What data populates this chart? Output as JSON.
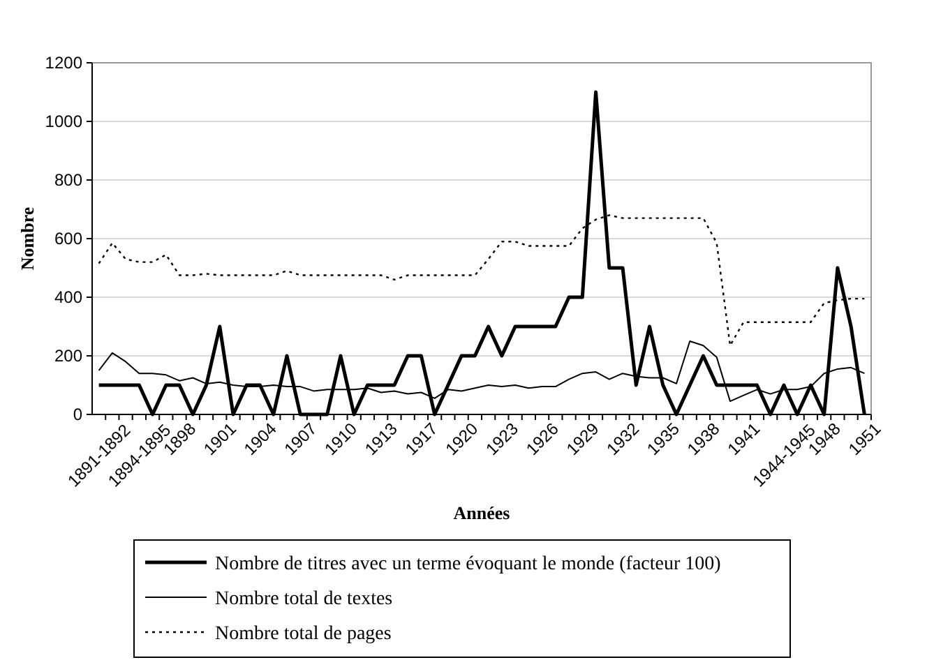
{
  "chart_data": {
    "type": "line",
    "xlabel": "Années",
    "ylabel": "Nombre",
    "categories": [
      "1891-1892",
      null,
      null,
      "1894-1895",
      null,
      null,
      "1898",
      null,
      null,
      "1901",
      null,
      null,
      "1904",
      null,
      null,
      "1907",
      null,
      null,
      "1910",
      null,
      null,
      "1913",
      null,
      null,
      "1917",
      null,
      null,
      "1920",
      null,
      null,
      "1923",
      null,
      null,
      "1926",
      null,
      null,
      "1929",
      null,
      null,
      "1932",
      null,
      null,
      "1935",
      null,
      null,
      "1938",
      null,
      null,
      "1941",
      null,
      null,
      "1944-1945",
      null,
      null,
      "1948",
      null,
      null,
      "1951"
    ],
    "series": [
      {
        "name": "Nombre de titres avec un terme évoquant le monde (facteur 100)",
        "color": "#000000",
        "line_style": "solid",
        "values": [
          100,
          100,
          100,
          100,
          0,
          100,
          100,
          0,
          100,
          300,
          0,
          100,
          100,
          0,
          200,
          0,
          0,
          0,
          200,
          0,
          100,
          100,
          100,
          200,
          200,
          0,
          100,
          200,
          200,
          300,
          200,
          300,
          300,
          300,
          300,
          400,
          400,
          1100,
          500,
          500,
          100,
          300,
          100,
          0,
          100,
          200,
          100,
          100,
          100,
          100,
          0,
          100,
          0,
          100,
          0,
          500,
          300,
          0
        ]
      },
      {
        "name": "Nombre total de textes",
        "color": "#000000",
        "line_style": "solid",
        "values": [
          150,
          210,
          180,
          140,
          140,
          135,
          115,
          125,
          105,
          110,
          100,
          95,
          95,
          100,
          95,
          95,
          80,
          85,
          85,
          85,
          90,
          75,
          80,
          70,
          75,
          55,
          85,
          80,
          90,
          100,
          95,
          100,
          90,
          95,
          95,
          120,
          140,
          145,
          120,
          140,
          130,
          125,
          125,
          105,
          250,
          235,
          195,
          45,
          65,
          85,
          70,
          85,
          85,
          95,
          140,
          155,
          160,
          140
        ]
      },
      {
        "name": "Nombre total de pages",
        "color": "#000000",
        "line_style": "dotted",
        "values": [
          515,
          585,
          530,
          520,
          520,
          545,
          475,
          475,
          480,
          475,
          475,
          475,
          475,
          475,
          490,
          475,
          475,
          475,
          475,
          475,
          475,
          475,
          460,
          475,
          475,
          475,
          475,
          475,
          475,
          530,
          590,
          590,
          575,
          575,
          575,
          575,
          635,
          665,
          680,
          670,
          670,
          670,
          670,
          670,
          670,
          670,
          585,
          235,
          315,
          315,
          315,
          315,
          315,
          315,
          380,
          390,
          395,
          395
        ]
      }
    ],
    "ylim": [
      0,
      1200
    ],
    "yticks": [
      0,
      200,
      400,
      600,
      800,
      1000,
      1200
    ],
    "grid": "y",
    "legend": "bottom",
    "marker": "none"
  }
}
